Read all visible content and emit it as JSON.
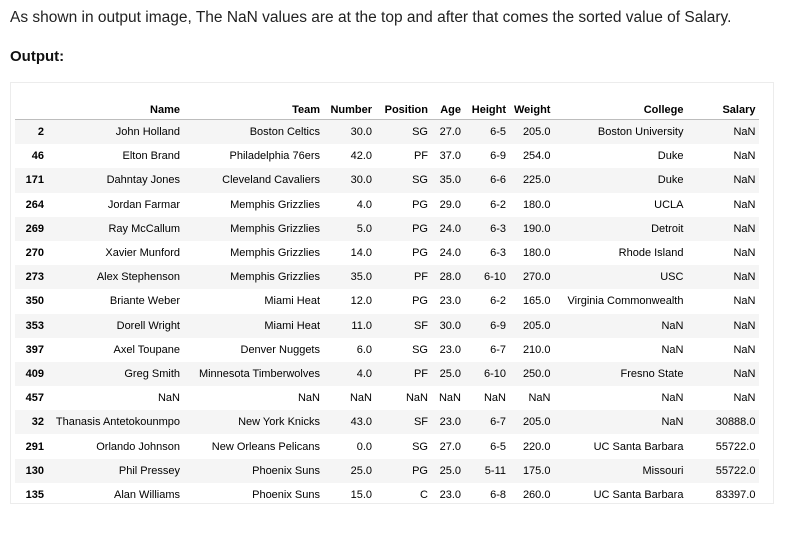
{
  "intro": "As shown in output image, The NaN values are at the top and after that comes the sorted value of Salary.",
  "output_label": "Output:",
  "table": {
    "columns": [
      "",
      "Name",
      "Team",
      "Number",
      "Position",
      "Age",
      "Height",
      "Weight",
      "College",
      "Salary"
    ],
    "rows": [
      [
        "2",
        "John Holland",
        "Boston Celtics",
        "30.0",
        "SG",
        "27.0",
        "6-5",
        "205.0",
        "Boston University",
        "NaN"
      ],
      [
        "46",
        "Elton Brand",
        "Philadelphia 76ers",
        "42.0",
        "PF",
        "37.0",
        "6-9",
        "254.0",
        "Duke",
        "NaN"
      ],
      [
        "171",
        "Dahntay Jones",
        "Cleveland Cavaliers",
        "30.0",
        "SG",
        "35.0",
        "6-6",
        "225.0",
        "Duke",
        "NaN"
      ],
      [
        "264",
        "Jordan Farmar",
        "Memphis Grizzlies",
        "4.0",
        "PG",
        "29.0",
        "6-2",
        "180.0",
        "UCLA",
        "NaN"
      ],
      [
        "269",
        "Ray McCallum",
        "Memphis Grizzlies",
        "5.0",
        "PG",
        "24.0",
        "6-3",
        "190.0",
        "Detroit",
        "NaN"
      ],
      [
        "270",
        "Xavier Munford",
        "Memphis Grizzlies",
        "14.0",
        "PG",
        "24.0",
        "6-3",
        "180.0",
        "Rhode Island",
        "NaN"
      ],
      [
        "273",
        "Alex Stephenson",
        "Memphis Grizzlies",
        "35.0",
        "PF",
        "28.0",
        "6-10",
        "270.0",
        "USC",
        "NaN"
      ],
      [
        "350",
        "Briante Weber",
        "Miami Heat",
        "12.0",
        "PG",
        "23.0",
        "6-2",
        "165.0",
        "Virginia Commonwealth",
        "NaN"
      ],
      [
        "353",
        "Dorell Wright",
        "Miami Heat",
        "11.0",
        "SF",
        "30.0",
        "6-9",
        "205.0",
        "NaN",
        "NaN"
      ],
      [
        "397",
        "Axel Toupane",
        "Denver Nuggets",
        "6.0",
        "SG",
        "23.0",
        "6-7",
        "210.0",
        "NaN",
        "NaN"
      ],
      [
        "409",
        "Greg Smith",
        "Minnesota Timberwolves",
        "4.0",
        "PF",
        "25.0",
        "6-10",
        "250.0",
        "Fresno State",
        "NaN"
      ],
      [
        "457",
        "NaN",
        "NaN",
        "NaN",
        "NaN",
        "NaN",
        "NaN",
        "NaN",
        "NaN",
        "NaN"
      ],
      [
        "32",
        "Thanasis Antetokounmpo",
        "New York Knicks",
        "43.0",
        "SF",
        "23.0",
        "6-7",
        "205.0",
        "NaN",
        "30888.0"
      ],
      [
        "291",
        "Orlando Johnson",
        "New Orleans Pelicans",
        "0.0",
        "SG",
        "27.0",
        "6-5",
        "220.0",
        "UC Santa Barbara",
        "55722.0"
      ],
      [
        "130",
        "Phil Pressey",
        "Phoenix Suns",
        "25.0",
        "PG",
        "25.0",
        "5-11",
        "175.0",
        "Missouri",
        "55722.0"
      ],
      [
        "135",
        "Alan Williams",
        "Phoenix Suns",
        "15.0",
        "C",
        "23.0",
        "6-8",
        "260.0",
        "UC Santa Barbara",
        "83397.0"
      ]
    ]
  }
}
